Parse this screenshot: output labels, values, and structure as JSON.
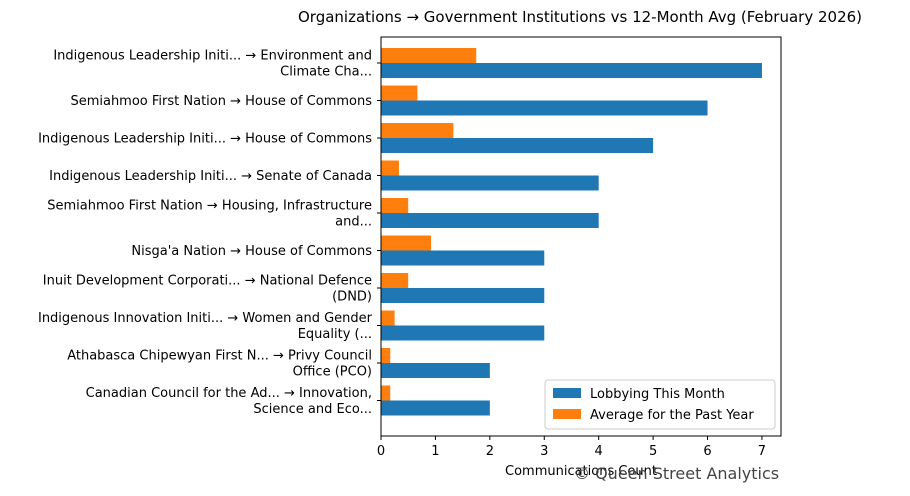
{
  "chart_data": {
    "type": "bar",
    "orientation": "horizontal",
    "title": "Organizations → Government Institutions vs 12-Month Avg (February 2026)",
    "xlabel": "Communications Count",
    "ylabel": "",
    "xlim": [
      0,
      7.35
    ],
    "xticks": [
      0,
      1,
      2,
      3,
      4,
      5,
      6,
      7
    ],
    "grid": false,
    "legend_position": "lower-right",
    "categories": [
      [
        "Indigenous Leadership Initi... → Environment and",
        "Climate Cha..."
      ],
      [
        "Semiahmoo First Nation → House of Commons"
      ],
      [
        "Indigenous Leadership Initi... → House of Commons"
      ],
      [
        "Indigenous Leadership Initi... → Senate of Canada"
      ],
      [
        "Semiahmoo First Nation → Housing, Infrastructure",
        "and..."
      ],
      [
        "Nisga'a Nation → House of Commons"
      ],
      [
        "Inuit Development Corporati... → National Defence",
        "(DND)"
      ],
      [
        "Indigenous Innovation Initi... → Women and Gender",
        "Equality (..."
      ],
      [
        "Athabasca Chipewyan First N... → Privy Council",
        "Office (PCO)"
      ],
      [
        "Canadian Council for the Ad... → Innovation,",
        "Science and Eco..."
      ]
    ],
    "series": [
      {
        "name": "Lobbying This Month",
        "color": "#1f77b4",
        "values": [
          7,
          6,
          5,
          4,
          4,
          3,
          3,
          3,
          2,
          2
        ]
      },
      {
        "name": "Average for the Past Year",
        "color": "#ff7f0e",
        "values": [
          1.75,
          0.67,
          1.33,
          0.33,
          0.5,
          0.92,
          0.5,
          0.25,
          0.17,
          0.17
        ]
      }
    ]
  },
  "watermark": "© Queen Street Analytics"
}
